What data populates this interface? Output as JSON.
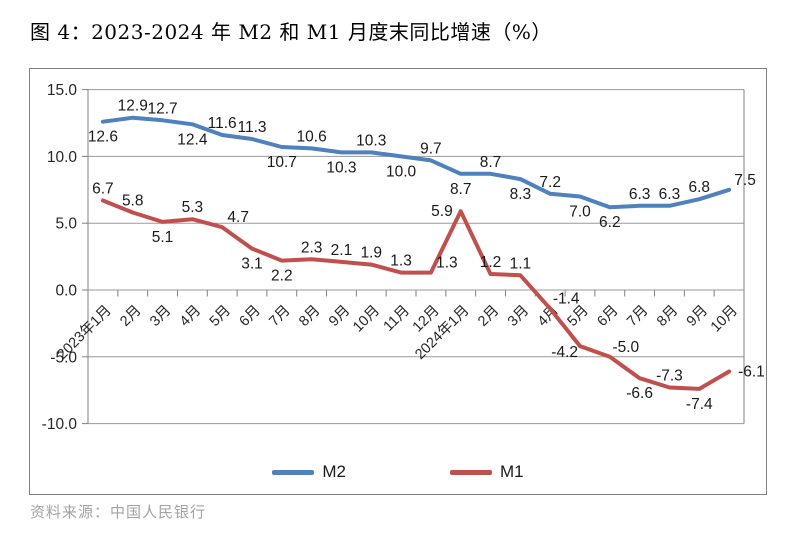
{
  "header": {
    "title": "图 4：2023-2024 年 M2 和 M1 月度末同比增速（%）"
  },
  "footer": {
    "source": "资料来源：中国人民银行"
  },
  "chart_data": {
    "type": "line",
    "title": "2023-2024 年 M2 和 M1 月度末同比增速（%）",
    "categories": [
      "2023年1月",
      "2月",
      "3月",
      "4月",
      "5月",
      "6月",
      "7月",
      "8月",
      "9月",
      "10月",
      "11月",
      "12月",
      "2024年1月",
      "2月",
      "3月",
      "4月",
      "5月",
      "6月",
      "7月",
      "8月",
      "9月",
      "10月"
    ],
    "series": [
      {
        "name": "M2",
        "color": "#4F81BD",
        "values": [
          12.6,
          12.9,
          12.7,
          12.4,
          11.6,
          11.3,
          10.7,
          10.6,
          10.3,
          10.3,
          10.0,
          9.7,
          8.7,
          8.7,
          8.3,
          7.2,
          7.0,
          6.2,
          6.3,
          6.3,
          6.8,
          7.5
        ],
        "label_sides": [
          "below",
          "above",
          "above",
          "below",
          "above",
          "above",
          "below",
          "above",
          "below",
          "above",
          "below",
          "above",
          "below",
          "above",
          "below",
          "above",
          "below",
          "below",
          "above",
          "above",
          "above",
          "above-right"
        ]
      },
      {
        "name": "M1",
        "color": "#C0504D",
        "values": [
          6.7,
          5.8,
          5.1,
          5.3,
          4.7,
          3.1,
          2.2,
          2.3,
          2.1,
          1.9,
          1.3,
          1.3,
          5.9,
          1.2,
          1.1,
          -1.4,
          -4.2,
          -5.0,
          -6.6,
          -7.3,
          -7.4,
          -6.1
        ],
        "label_sides": [
          "above",
          "above",
          "below",
          "above",
          "above-right",
          "below",
          "below",
          "above",
          "above",
          "above",
          "above",
          "above-right",
          "left",
          "above",
          "above",
          "above-right",
          "below-left",
          "above-right",
          "below",
          "above",
          "below",
          "right"
        ]
      }
    ],
    "xlabel": "",
    "ylabel": "",
    "ylim": [
      -10,
      15
    ],
    "ytick_step": 5,
    "ytick_labels": [
      "15.0",
      "10.0",
      "5.0",
      "0.0",
      "-5.0",
      "-10.0"
    ],
    "grid": true,
    "data_labels": true,
    "legend_position": "bottom",
    "colors": {
      "grid": "#9a9a9a",
      "axis": "#808080",
      "tick_text": "#262626",
      "data_label_text": "#1a1a1a"
    }
  }
}
